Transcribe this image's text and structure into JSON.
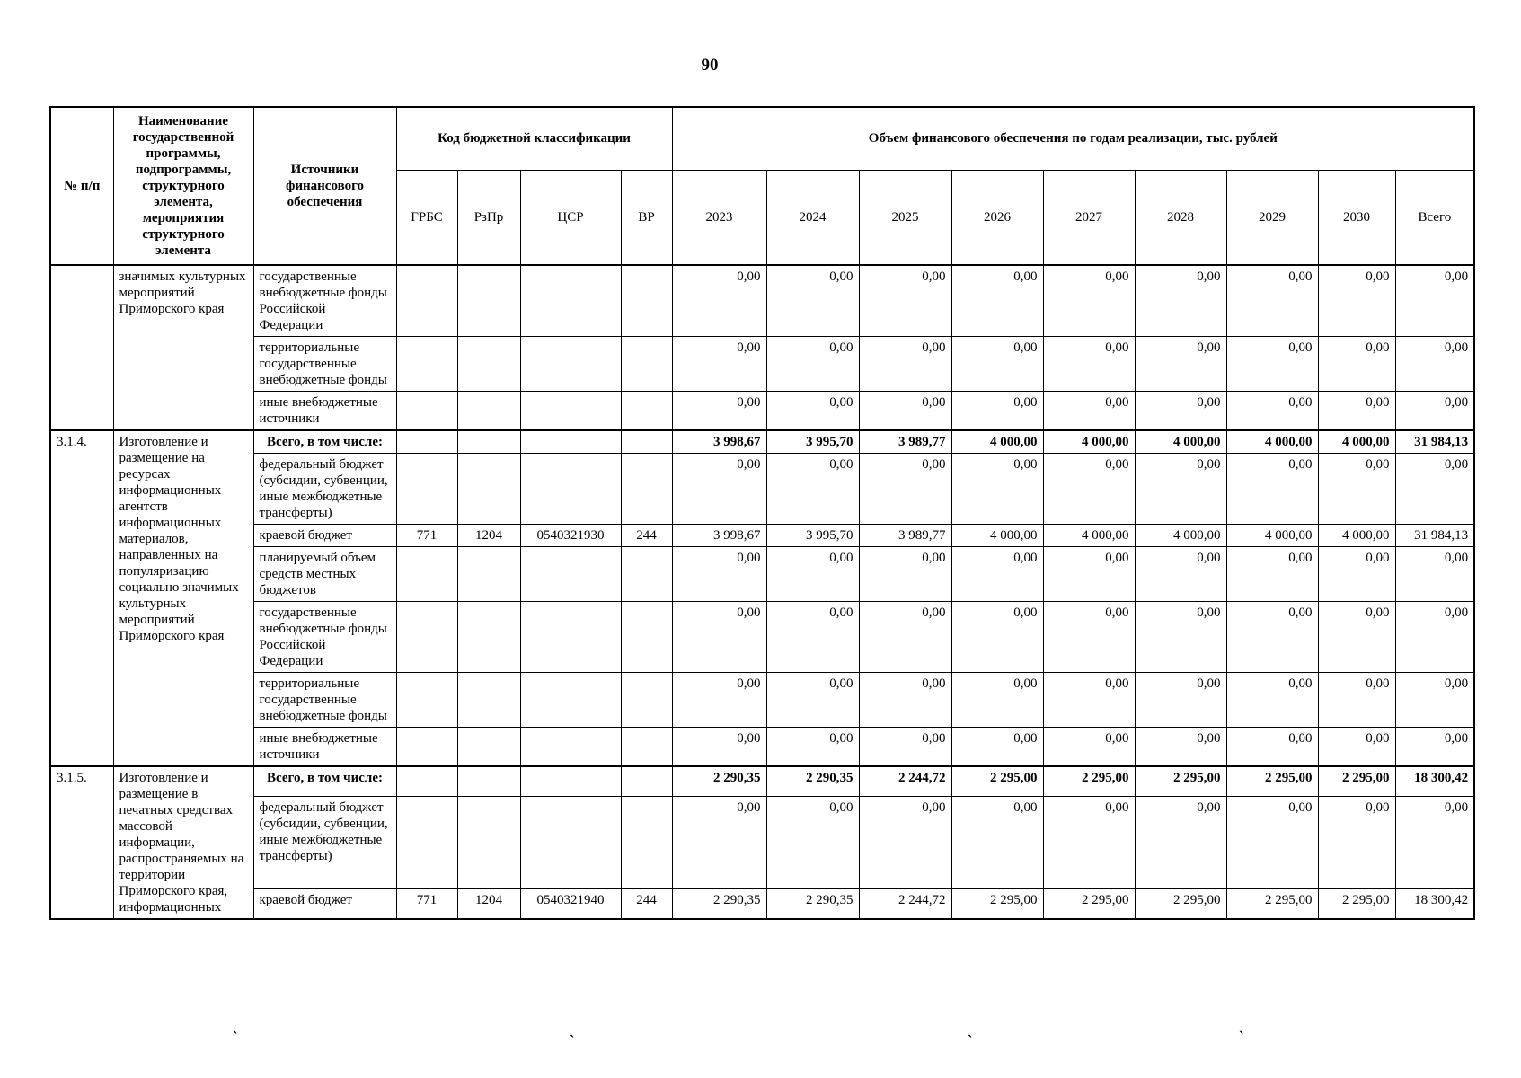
{
  "page": {
    "number": "90"
  },
  "table": {
    "header": {
      "col_num": "№ п/п",
      "col_name": "Наименование государственной программы, подпрограммы, структурного элемента, мероприятия структурного элемента",
      "col_source": "Источники финансового обеспечения",
      "group_budget_code": "Код бюджетной классификации",
      "group_volume": "Объем финансового обеспечения по годам реализации, тыс. рублей",
      "code_cols": [
        "ГРБС",
        "РзПр",
        "ЦСР",
        "ВР"
      ],
      "year_cols": [
        "2023",
        "2024",
        "2025",
        "2026",
        "2027",
        "2028",
        "2029",
        "2030",
        "Всего"
      ]
    },
    "sections": [
      {
        "num": "",
        "name": "значимых культурных мероприятий Приморского края",
        "rows": [
          {
            "source": "государственные внебюджетные фонды Российской Федерации",
            "codes": [
              "",
              "",
              "",
              ""
            ],
            "values": [
              "0,00",
              "0,00",
              "0,00",
              "0,00",
              "0,00",
              "0,00",
              "0,00",
              "0,00",
              "0,00"
            ],
            "is_total": false
          },
          {
            "source": "территориальные государственные внебюджетные фонды",
            "codes": [
              "",
              "",
              "",
              ""
            ],
            "values": [
              "0,00",
              "0,00",
              "0,00",
              "0,00",
              "0,00",
              "0,00",
              "0,00",
              "0,00",
              "0,00"
            ],
            "is_total": false
          },
          {
            "source": "иные внебюджетные источники",
            "codes": [
              "",
              "",
              "",
              ""
            ],
            "values": [
              "0,00",
              "0,00",
              "0,00",
              "0,00",
              "0,00",
              "0,00",
              "0,00",
              "0,00",
              "0,00"
            ],
            "is_total": false
          }
        ]
      },
      {
        "num": "3.1.4.",
        "name": "Изготовление и размещение на ресурсах информационных агентств информационных материалов, направленных на популяризацию социально значимых культурных мероприятий Приморского края",
        "rows": [
          {
            "source": "Всего, в том числе:",
            "codes": [
              "",
              "",
              "",
              ""
            ],
            "values": [
              "3 998,67",
              "3 995,70",
              "3 989,77",
              "4 000,00",
              "4 000,00",
              "4 000,00",
              "4 000,00",
              "4 000,00",
              "31 984,13"
            ],
            "is_total": true
          },
          {
            "source": "федеральный бюджет (субсидии, субвенции, иные межбюджетные трансферты)",
            "codes": [
              "",
              "",
              "",
              ""
            ],
            "values": [
              "0,00",
              "0,00",
              "0,00",
              "0,00",
              "0,00",
              "0,00",
              "0,00",
              "0,00",
              "0,00"
            ],
            "is_total": false
          },
          {
            "source": "краевой бюджет",
            "codes": [
              "771",
              "1204",
              "0540321930",
              "244"
            ],
            "values": [
              "3 998,67",
              "3 995,70",
              "3 989,77",
              "4 000,00",
              "4 000,00",
              "4 000,00",
              "4 000,00",
              "4 000,00",
              "31 984,13"
            ],
            "is_total": false
          },
          {
            "source": "планируемый объем средств местных бюджетов",
            "codes": [
              "",
              "",
              "",
              ""
            ],
            "values": [
              "0,00",
              "0,00",
              "0,00",
              "0,00",
              "0,00",
              "0,00",
              "0,00",
              "0,00",
              "0,00"
            ],
            "is_total": false
          },
          {
            "source": "государственные внебюджетные фонды Российской Федерации",
            "codes": [
              "",
              "",
              "",
              ""
            ],
            "values": [
              "0,00",
              "0,00",
              "0,00",
              "0,00",
              "0,00",
              "0,00",
              "0,00",
              "0,00",
              "0,00"
            ],
            "is_total": false
          },
          {
            "source": "территориальные государственные внебюджетные фонды",
            "codes": [
              "",
              "",
              "",
              ""
            ],
            "values": [
              "0,00",
              "0,00",
              "0,00",
              "0,00",
              "0,00",
              "0,00",
              "0,00",
              "0,00",
              "0,00"
            ],
            "is_total": false
          },
          {
            "source": "иные внебюджетные источники",
            "codes": [
              "",
              "",
              "",
              ""
            ],
            "values": [
              "0,00",
              "0,00",
              "0,00",
              "0,00",
              "0,00",
              "0,00",
              "0,00",
              "0,00",
              "0,00"
            ],
            "is_total": false
          }
        ]
      },
      {
        "num": "3.1.5.",
        "name": "Изготовление и размещение в печатных средствах массовой информации, распространяемых на территории Приморского края, информационных",
        "rows": [
          {
            "source": "Всего, в том числе:",
            "codes": [
              "",
              "",
              "",
              ""
            ],
            "values": [
              "2 290,35",
              "2 290,35",
              "2 244,72",
              "2 295,00",
              "2 295,00",
              "2 295,00",
              "2 295,00",
              "2 295,00",
              "18 300,42"
            ],
            "is_total": true
          },
          {
            "source": "федеральный бюджет (субсидии, субвенции, иные межбюджетные трансферты)",
            "codes": [
              "",
              "",
              "",
              ""
            ],
            "values": [
              "0,00",
              "0,00",
              "0,00",
              "0,00",
              "0,00",
              "0,00",
              "0,00",
              "0,00",
              "0,00"
            ],
            "is_total": false
          },
          {
            "source": "краевой бюджет",
            "codes": [
              "771",
              "1204",
              "0540321940",
              "244"
            ],
            "values": [
              "2 290,35",
              "2 290,35",
              "2 244,72",
              "2 295,00",
              "2 295,00",
              "2 295,00",
              "2 295,00",
              "2 295,00",
              "18 300,42"
            ],
            "is_total": false
          }
        ]
      }
    ]
  },
  "artifacts": {
    "glyph": "`"
  }
}
